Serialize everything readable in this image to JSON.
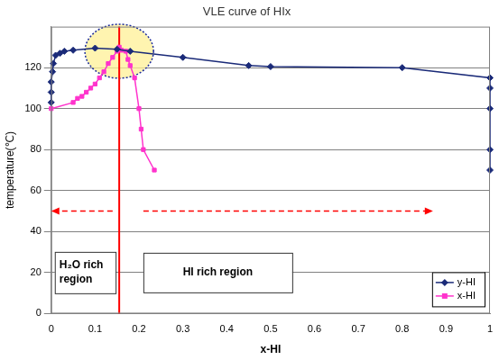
{
  "chart_data": {
    "type": "scatter",
    "title": "VLE curve of HIx",
    "x_label": "x-HI",
    "y_label": "temperature(℃)",
    "xlim": [
      0,
      1
    ],
    "xticks": [
      0,
      0.1,
      0.2,
      0.3,
      0.4,
      0.5,
      0.6,
      0.7,
      0.8,
      0.9,
      1
    ],
    "ylim": [
      0,
      140
    ],
    "yticks": [
      0,
      20,
      40,
      60,
      80,
      100,
      120
    ],
    "grid": "y",
    "legend": "lower right",
    "series": [
      {
        "name": "y-HI",
        "color": "#1a2a78",
        "marker": "diamond",
        "line_style": "solid",
        "x": [
          0,
          0,
          0,
          0.003,
          0.005,
          0.01,
          0.02,
          0.03,
          0.05,
          0.1,
          0.15,
          0.18,
          0.3,
          0.45,
          0.5,
          0.8,
          1,
          1,
          1,
          1,
          1
        ],
        "values": [
          103,
          108,
          113,
          118,
          122,
          126,
          127,
          128,
          128.5,
          129.5,
          129,
          128,
          125,
          121,
          120.5,
          120,
          115,
          110,
          100,
          80,
          70
        ]
      },
      {
        "name": "x-HI",
        "color": "#ff33cc",
        "marker": "square",
        "line_style": "solid",
        "x": [
          0,
          0.05,
          0.06,
          0.07,
          0.08,
          0.09,
          0.1,
          0.11,
          0.12,
          0.13,
          0.14,
          0.15,
          0.155,
          0.16,
          0.17,
          0.175,
          0.18,
          0.19,
          0.2,
          0.205,
          0.21,
          0.235
        ],
        "values": [
          100,
          103,
          105,
          106,
          108,
          110,
          112,
          115,
          118,
          122,
          125,
          128,
          130,
          128.5,
          128,
          124,
          121,
          115,
          100,
          90,
          80,
          70
        ]
      }
    ],
    "divider_x": 0.155,
    "highlight": {
      "x": 0.155,
      "y": 128
    },
    "arrow_y": 50,
    "regions": [
      {
        "text": "H₂O rich region",
        "arrow_x": [
          0.14,
          0
        ]
      },
      {
        "text": "HI rich region",
        "arrow_x": [
          0.21,
          0.87
        ]
      }
    ]
  }
}
